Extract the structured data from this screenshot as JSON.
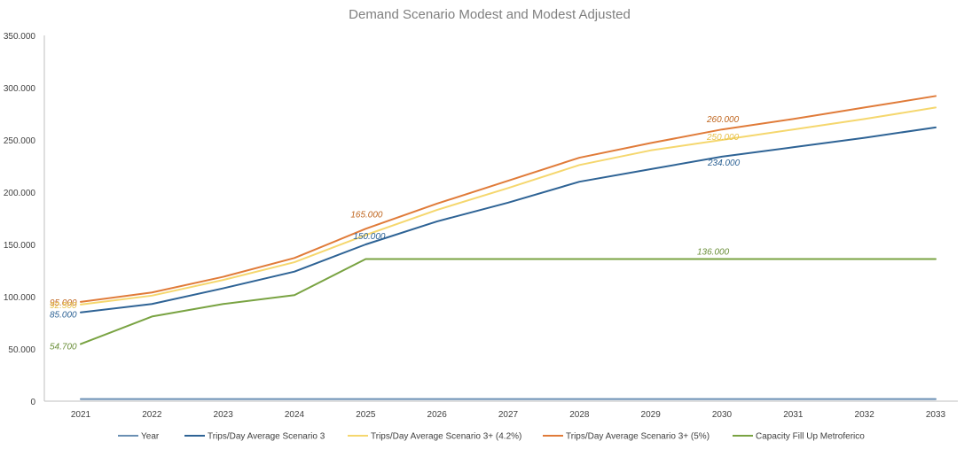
{
  "chart_data": {
    "type": "line",
    "title": "Demand Scenario Modest and Modest Adjusted",
    "xlabel": "",
    "ylabel": "",
    "x": [
      "2021",
      "2022",
      "2023",
      "2024",
      "2025",
      "2026",
      "2027",
      "2028",
      "2029",
      "2030",
      "2031",
      "2032",
      "2033"
    ],
    "ylim": [
      0,
      350000
    ],
    "yticks": [
      "0",
      "50.000",
      "100.000",
      "150.000",
      "200.000",
      "250.000",
      "300.000",
      "350.000"
    ],
    "grid": false,
    "legend_position": "bottom",
    "series": [
      {
        "name": "Year",
        "color": "#6a8fb3",
        "values": [
          2021,
          2022,
          2023,
          2024,
          2025,
          2026,
          2027,
          2028,
          2029,
          2030,
          2031,
          2032,
          2033
        ]
      },
      {
        "name": "Trips/Day Average Scenario 3",
        "color": "#2e6395",
        "values": [
          85000,
          93000,
          108000,
          124000,
          150000,
          172000,
          190000,
          210000,
          222000,
          234000,
          243000,
          252000,
          262000
        ]
      },
      {
        "name": "Trips/Day Average Scenario 3+ (4.2%)",
        "color": "#f5d76e",
        "values": [
          92500,
          101000,
          116000,
          133000,
          159000,
          183000,
          204000,
          226000,
          240000,
          250000,
          260000,
          270000,
          281000
        ]
      },
      {
        "name": "Trips/Day Average Scenario 3+ (5%)",
        "color": "#e07b39",
        "values": [
          95000,
          104000,
          119000,
          137000,
          165000,
          189000,
          211000,
          233000,
          247000,
          260000,
          270000,
          281000,
          292000
        ]
      },
      {
        "name": "Capacity Fill Up Metroferico",
        "color": "#79a342",
        "values": [
          54700,
          81000,
          93000,
          101500,
          136000,
          136000,
          136000,
          136000,
          136000,
          136000,
          136000,
          136000,
          136000
        ]
      }
    ],
    "annotations": [
      {
        "text": "95.000",
        "series": 3,
        "index": 0,
        "color": "#c0661f"
      },
      {
        "text": "92.500",
        "series": 2,
        "index": 0,
        "color": "#e8c14a"
      },
      {
        "text": "85.000",
        "series": 1,
        "index": 0,
        "color": "#2e6395"
      },
      {
        "text": "54.700",
        "series": 4,
        "index": 0,
        "color": "#6b8f3a"
      },
      {
        "text": "165.000",
        "series": 3,
        "index": 4,
        "color": "#c0661f"
      },
      {
        "text": "150.000",
        "series": 1,
        "index": 4,
        "color": "#2e6395"
      },
      {
        "text": "260.000",
        "series": 3,
        "index": 9,
        "color": "#c0661f"
      },
      {
        "text": "250.000",
        "series": 2,
        "index": 9,
        "color": "#e8c14a"
      },
      {
        "text": "234.000",
        "series": 1,
        "index": 9,
        "color": "#2e6395"
      },
      {
        "text": "136.000",
        "series": 4,
        "index": 9,
        "color": "#6b8f3a"
      }
    ]
  }
}
